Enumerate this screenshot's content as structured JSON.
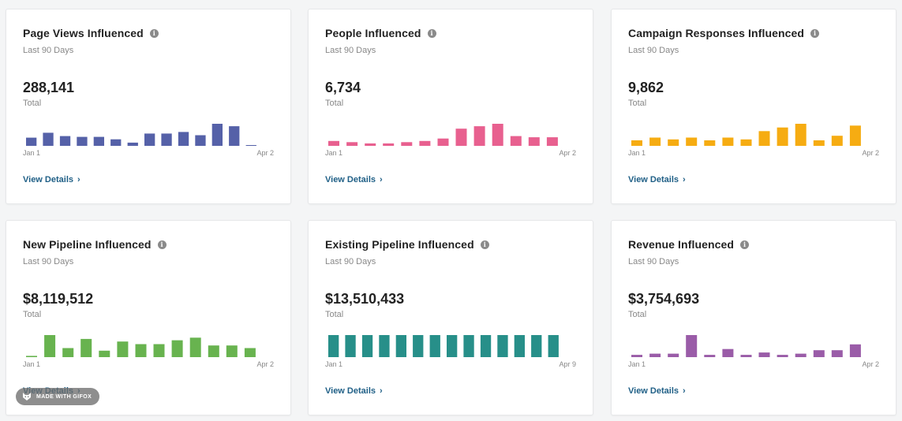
{
  "cards": [
    {
      "title": "Page Views Influenced",
      "subtitle": "Last 90 Days",
      "value": "288,141",
      "value_label": "Total",
      "details_label": "View Details",
      "color": "#5561a8",
      "chart_data": {
        "type": "bar",
        "start_label": "Jan 1",
        "end_label": "Apr 2",
        "values": [
          10,
          16,
          12,
          11,
          11,
          8,
          4,
          15,
          15,
          17,
          13,
          27,
          24,
          1
        ]
      }
    },
    {
      "title": "People Influenced",
      "subtitle": "Last 90 Days",
      "value": "6,734",
      "value_label": "Total",
      "details_label": "View Details",
      "color": "#e8608f",
      "chart_data": {
        "type": "bar",
        "start_label": "Jan 1",
        "end_label": "Apr 2",
        "values": [
          4,
          3,
          2,
          2,
          3,
          4,
          6,
          14,
          16,
          18,
          8,
          7,
          7
        ]
      }
    },
    {
      "title": "Campaign Responses Influenced",
      "subtitle": "Last 90 Days",
      "value": "9,862",
      "value_label": "Total",
      "details_label": "View Details",
      "color": "#f6ac12",
      "chart_data": {
        "type": "bar",
        "start_label": "Jan 1",
        "end_label": "Apr 2",
        "values": [
          6,
          9,
          7,
          9,
          6,
          9,
          7,
          16,
          20,
          24,
          6,
          11,
          22
        ]
      }
    },
    {
      "title": "New Pipeline Influenced",
      "subtitle": "Last 90 Days",
      "value": "$8,119,512",
      "value_label": "Total",
      "details_label": "View Details",
      "color": "#68b34f",
      "chart_data": {
        "type": "bar",
        "start_label": "Jan 1",
        "end_label": "Apr 2",
        "values": [
          1,
          17,
          7,
          14,
          5,
          12,
          10,
          10,
          13,
          15,
          9,
          9,
          7
        ]
      }
    },
    {
      "title": "Existing Pipeline Influenced",
      "subtitle": "Last 90 Days",
      "value": "$13,510,433",
      "value_label": "Total",
      "details_label": "View Details",
      "color": "#278f89",
      "chart_data": {
        "type": "bar",
        "start_label": "Jan 1",
        "end_label": "Apr 9",
        "values": [
          20,
          20,
          20,
          20,
          20,
          20,
          20,
          20,
          20,
          20,
          20,
          20,
          20,
          20
        ]
      }
    },
    {
      "title": "Revenue Influenced",
      "subtitle": "Last 90 Days",
      "value": "$3,754,693",
      "value_label": "Total",
      "details_label": "View Details",
      "color": "#9a5ca8",
      "chart_data": {
        "type": "bar",
        "start_label": "Jan 1",
        "end_label": "Apr 2",
        "values": [
          2,
          3,
          3,
          19,
          2,
          7,
          2,
          4,
          2,
          3,
          6,
          6,
          11
        ]
      }
    }
  ],
  "watermark": {
    "text": "MADE WITH GIFOX",
    "icon": "fox-icon"
  }
}
